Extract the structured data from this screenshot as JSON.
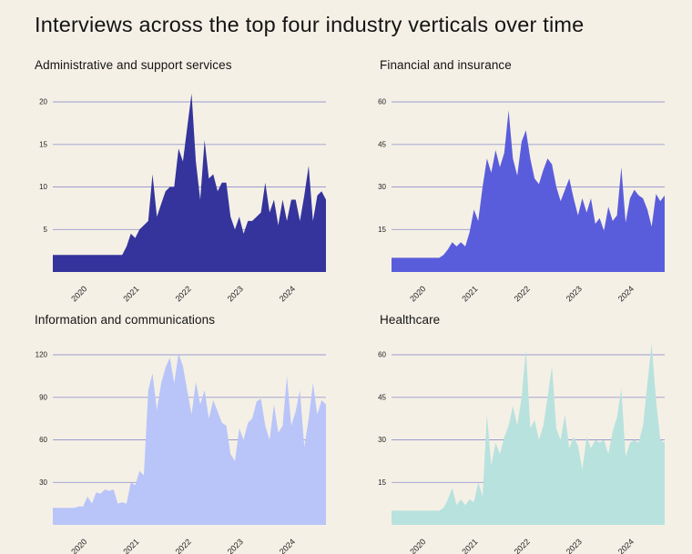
{
  "page": {
    "title": "Interviews across the top four industry verticals over time",
    "background_color": "#f5f0e6",
    "gridline_color": "#999cce",
    "tick_text_color": "#222222",
    "title_text_color": "#141414"
  },
  "chart_data": [
    {
      "type": "area",
      "title": "Administrative and support services",
      "color": "#34349c",
      "yticks": [
        5,
        10,
        15,
        20
      ],
      "ylim": [
        0,
        22
      ],
      "xticks": [
        "2020",
        "2021",
        "2022",
        "2023",
        "2024"
      ],
      "xtick_indices": [
        8,
        20,
        32,
        44,
        56
      ],
      "x_range": "monthly, mid-2019 to mid-2024",
      "grid": "on",
      "values": [
        2,
        2,
        2,
        2,
        2,
        2,
        2,
        2,
        2,
        2,
        2,
        2,
        2,
        2,
        2,
        2,
        2,
        3,
        4.5,
        4,
        5,
        5.5,
        6,
        11.5,
        6.5,
        8,
        9.5,
        10,
        10,
        14.5,
        13,
        17,
        21,
        13,
        8.5,
        15.5,
        11,
        11.5,
        9.5,
        10.5,
        10.5,
        6.5,
        5,
        6.5,
        4.5,
        6,
        6,
        6.5,
        7,
        10.5,
        7,
        8.5,
        5.5,
        8.5,
        6,
        8.5,
        8.5,
        6,
        9,
        12.5,
        6,
        9,
        9.5,
        8.5
      ]
    },
    {
      "type": "area",
      "title": "Financial and insurance",
      "color": "#5a5ddb",
      "yticks": [
        15,
        30,
        45,
        60
      ],
      "ylim": [
        0,
        62
      ],
      "xticks": [
        "2020",
        "2021",
        "2022",
        "2023",
        "2024"
      ],
      "xtick_indices": [
        8,
        20,
        32,
        44,
        56
      ],
      "x_range": "monthly, mid-2019 to mid-2024",
      "grid": "on",
      "values": [
        5,
        5,
        5,
        5,
        5,
        5,
        5,
        5,
        5,
        5,
        5,
        5,
        6,
        8,
        10.5,
        9,
        10.5,
        9,
        14,
        22,
        18,
        30,
        40,
        35,
        43,
        37,
        42,
        57,
        40,
        34,
        46,
        50,
        40,
        33,
        31,
        36,
        40,
        38,
        30,
        25,
        29,
        33,
        26,
        20,
        26,
        21,
        26,
        17,
        19,
        14.5,
        23,
        18,
        20,
        37,
        17.5,
        26,
        29,
        27,
        26,
        22,
        16,
        27.5,
        25,
        27
      ]
    },
    {
      "type": "area",
      "title": "Information and communications",
      "color": "#b9c5f9",
      "yticks": [
        30,
        60,
        90,
        120
      ],
      "ylim": [
        0,
        125
      ],
      "xticks": [
        "2020",
        "2021",
        "2022",
        "2023",
        "2024"
      ],
      "xtick_indices": [
        8,
        20,
        32,
        44,
        56
      ],
      "x_range": "monthly, mid-2019 to mid-2024",
      "grid": "on",
      "values": [
        12,
        12,
        12,
        12,
        12,
        12,
        13,
        13,
        20,
        15,
        23,
        22,
        25,
        24,
        25,
        15,
        16,
        15,
        30,
        28,
        38,
        35,
        95,
        107,
        81,
        100,
        111,
        118,
        100,
        121,
        112,
        95,
        78,
        101,
        85,
        95,
        75,
        88,
        80,
        72,
        70,
        50,
        45,
        68,
        60,
        72,
        75,
        87,
        89,
        70,
        60,
        85,
        65,
        70,
        105,
        70,
        80,
        95,
        55,
        75,
        100,
        78,
        88,
        85
      ]
    },
    {
      "type": "area",
      "title": "Healthcare",
      "color": "#b8e2de",
      "yticks": [
        15,
        30,
        45,
        60
      ],
      "ylim": [
        0,
        66
      ],
      "xticks": [
        "2020",
        "2021",
        "2022",
        "2023",
        "2024"
      ],
      "xtick_indices": [
        8,
        20,
        32,
        44,
        56
      ],
      "x_range": "monthly, mid-2019 to mid-2024",
      "grid": "on",
      "values": [
        5,
        5,
        5,
        5,
        5,
        5,
        5,
        5,
        5,
        5,
        5,
        5,
        6,
        9,
        13,
        7,
        9,
        7,
        9,
        8,
        15,
        10,
        39,
        21,
        29,
        25,
        31,
        35,
        42,
        35,
        45,
        62,
        34,
        37,
        30,
        35,
        45,
        56,
        34,
        30,
        39,
        27,
        31,
        28,
        19.5,
        31,
        27,
        30,
        29,
        30,
        25,
        33,
        38,
        48,
        24,
        29,
        30,
        29,
        35,
        50,
        64,
        44,
        30,
        29
      ]
    }
  ]
}
